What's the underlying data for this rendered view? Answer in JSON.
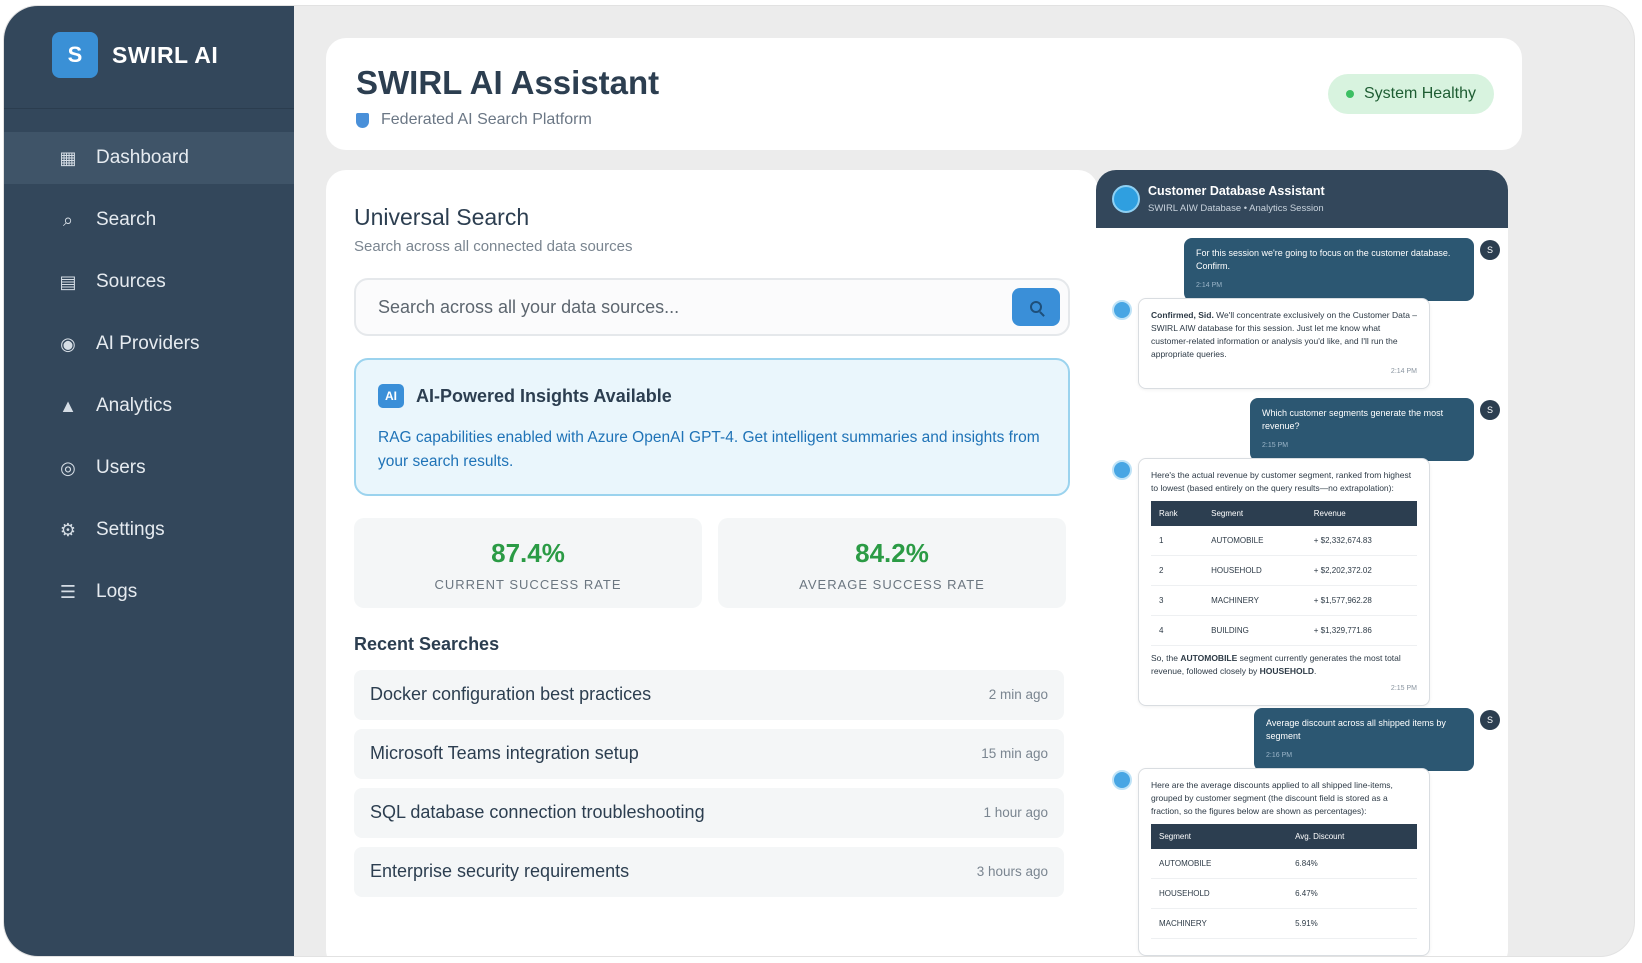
{
  "brand": {
    "logo_letter": "S",
    "name": "SWIRL AI"
  },
  "sidebar": {
    "items": [
      {
        "label": "Dashboard",
        "icon": "grid-icon",
        "glyph": "▦",
        "active": true
      },
      {
        "label": "Search",
        "icon": "search-icon",
        "glyph": "⌕",
        "active": false
      },
      {
        "label": "Sources",
        "icon": "database-icon",
        "glyph": "▤",
        "active": false
      },
      {
        "label": "AI Providers",
        "icon": "target-icon",
        "glyph": "◉",
        "active": false
      },
      {
        "label": "Analytics",
        "icon": "triangle-icon",
        "glyph": "▲",
        "active": false
      },
      {
        "label": "Users",
        "icon": "circle-icon",
        "glyph": "◎",
        "active": false
      },
      {
        "label": "Settings",
        "icon": "gear-icon",
        "glyph": "⚙",
        "active": false
      },
      {
        "label": "Logs",
        "icon": "menu-icon",
        "glyph": "☰",
        "active": false
      }
    ]
  },
  "header": {
    "title": "SWIRL AI Assistant",
    "subtitle": "Federated AI Search Platform",
    "status": "System Healthy"
  },
  "search": {
    "title": "Universal Search",
    "subtitle": "Search across all connected data sources",
    "placeholder": "Search across all your data sources..."
  },
  "insight": {
    "badge": "AI",
    "title": "AI-Powered Insights Available",
    "text": "RAG capabilities enabled with Azure OpenAI GPT-4. Get intelligent summaries and insights from your search results."
  },
  "stats": [
    {
      "value": "87.4%",
      "label": "CURRENT SUCCESS RATE"
    },
    {
      "value": "84.2%",
      "label": "AVERAGE SUCCESS RATE"
    }
  ],
  "recent": {
    "title": "Recent Searches",
    "items": [
      {
        "query": "Docker configuration best practices",
        "time": "2 min ago"
      },
      {
        "query": "Microsoft Teams integration setup",
        "time": "15 min ago"
      },
      {
        "query": "SQL database connection troubleshooting",
        "time": "1 hour ago"
      },
      {
        "query": "Enterprise security requirements",
        "time": "3 hours ago"
      }
    ]
  },
  "chat": {
    "title": "Customer Database Assistant",
    "subtitle": "SWIRL AIW Database • Analytics Session",
    "user_initial": "S",
    "messages": {
      "m1": {
        "text": "For this session we're going to focus on the customer database. Confirm.",
        "time": "2:14 PM"
      },
      "m2": {
        "bold": "Confirmed, Sid.",
        "text": " We'll concentrate exclusively on the Customer Data – SWIRL AIW database for this session. Just let me know what customer-related information or analysis you'd like, and I'll run the appropriate queries.",
        "time": "2:14 PM"
      },
      "m3": {
        "text": "Which customer segments generate the most revenue?",
        "time": "2:15 PM"
      },
      "m4": {
        "intro": "Here's the actual revenue by customer segment, ranked from highest to lowest (based entirely on the query results—no extrapolation):",
        "headers": [
          "Rank",
          "Segment",
          "Revenue"
        ],
        "rows": [
          [
            "1",
            "AUTOMOBILE",
            "+ $2,332,674.83"
          ],
          [
            "2",
            "HOUSEHOLD",
            "+ $2,202,372.02"
          ],
          [
            "3",
            "MACHINERY",
            "+ $1,577,962.28"
          ],
          [
            "4",
            "BUILDING",
            "+ $1,329,771.86"
          ]
        ],
        "out_a": "So, the ",
        "out_b1": "AUTOMOBILE",
        "out_c": " segment currently generates the most total revenue, followed closely by ",
        "out_b2": "HOUSEHOLD",
        "out_d": ".",
        "time": "2:15 PM"
      },
      "m5": {
        "text": "Average discount across all shipped items by segment",
        "time": "2:16 PM"
      },
      "m6": {
        "intro": "Here are the average discounts applied to all shipped line-items, grouped by customer segment (the discount field is stored as a fraction, so the figures below are shown as percentages):",
        "headers": [
          "Segment",
          "Avg. Discount"
        ],
        "rows": [
          [
            "AUTOMOBILE",
            "6.84%"
          ],
          [
            "HOUSEHOLD",
            "6.47%"
          ],
          [
            "MACHINERY",
            "5.91%"
          ]
        ]
      }
    }
  }
}
